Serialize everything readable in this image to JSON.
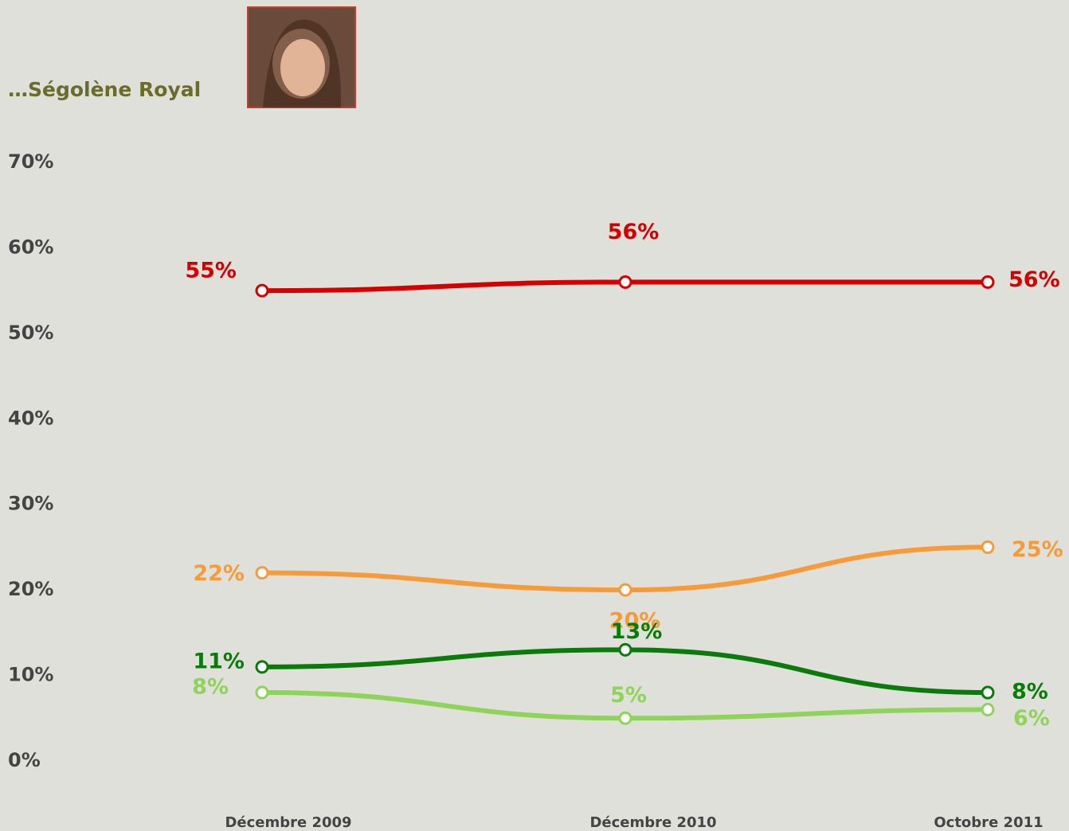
{
  "chart_data": {
    "type": "line",
    "title": "…Ségolène Royal",
    "categories": [
      "Décembre 2009",
      "Décembre 2010",
      "Octobre 2011"
    ],
    "ylim": [
      0,
      70
    ],
    "yticks": [
      {
        "value": 0,
        "label": "0%"
      },
      {
        "value": 10,
        "label": "10%"
      },
      {
        "value": 20,
        "label": "20%"
      },
      {
        "value": 30,
        "label": "30%"
      },
      {
        "value": 40,
        "label": "40%"
      },
      {
        "value": 50,
        "label": "50%"
      },
      {
        "value": 60,
        "label": "60%"
      },
      {
        "value": 70,
        "label": "70%"
      }
    ],
    "grid": false,
    "series": [
      {
        "color": "#d40000",
        "values": [
          55,
          56,
          56
        ],
        "value_labels": [
          "55%",
          "56%",
          "56%"
        ]
      },
      {
        "color": "#f79a3a",
        "values": [
          22,
          20,
          25
        ],
        "value_labels": [
          "22%",
          "20%",
          "25%"
        ]
      },
      {
        "color": "#0a7a0a",
        "values": [
          11,
          13,
          8
        ],
        "value_labels": [
          "11%",
          "13%",
          "8%"
        ]
      },
      {
        "color": "#8fd45a",
        "values": [
          8,
          5,
          6
        ],
        "value_labels": [
          "8%",
          "5%",
          "6%"
        ]
      }
    ]
  }
}
